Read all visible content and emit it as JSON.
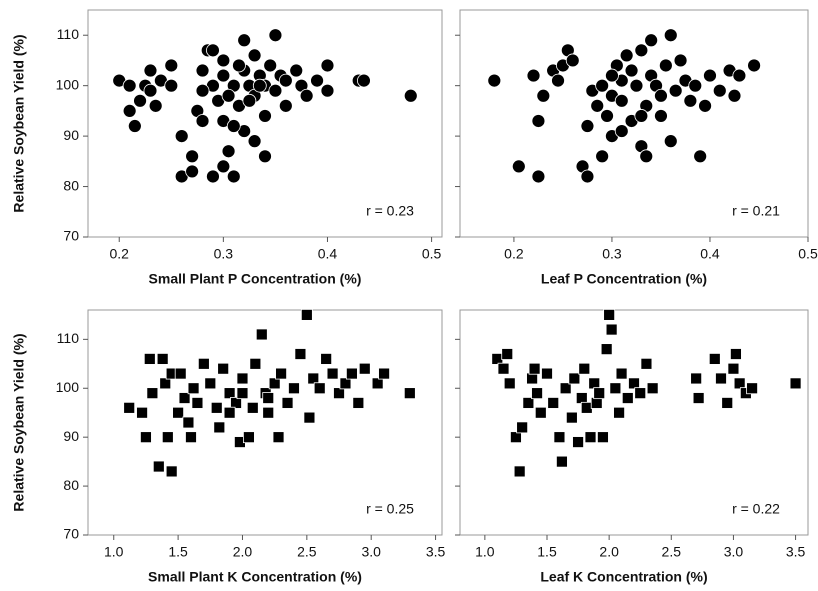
{
  "chart_data": [
    {
      "type": "scatter",
      "marker": "circle",
      "color": "#000000",
      "ylabel": "Relative Soybean Yield (%)",
      "xlabel": "Small Plant P Concentration (%)",
      "annotation": "r = 0.23",
      "xlim": [
        0.17,
        0.51
      ],
      "ylim": [
        70,
        115
      ],
      "xticks": [
        0.2,
        0.3,
        0.4,
        0.5
      ],
      "yticks": [
        70,
        80,
        90,
        100,
        110
      ],
      "x": [
        0.2,
        0.21,
        0.21,
        0.215,
        0.22,
        0.225,
        0.23,
        0.23,
        0.235,
        0.24,
        0.25,
        0.25,
        0.26,
        0.26,
        0.27,
        0.27,
        0.275,
        0.28,
        0.28,
        0.285,
        0.29,
        0.29,
        0.29,
        0.295,
        0.3,
        0.3,
        0.3,
        0.305,
        0.31,
        0.31,
        0.315,
        0.32,
        0.32,
        0.32,
        0.325,
        0.33,
        0.33,
        0.33,
        0.335,
        0.34,
        0.34,
        0.34,
        0.345,
        0.35,
        0.35,
        0.355,
        0.36,
        0.36,
        0.37,
        0.375,
        0.38,
        0.39,
        0.4,
        0.4,
        0.43,
        0.435,
        0.48,
        0.305,
        0.315,
        0.325,
        0.335,
        0.31,
        0.28,
        0.3
      ],
      "y": [
        101,
        100,
        95,
        92,
        97,
        100,
        103,
        99,
        96,
        101,
        100,
        104,
        90,
        82,
        86,
        83,
        95,
        103,
        93,
        107,
        107,
        82,
        100,
        97,
        93,
        102,
        84,
        87,
        100,
        82,
        96,
        109,
        103,
        91,
        100,
        106,
        98,
        89,
        102,
        100,
        86,
        94,
        104,
        110,
        99,
        102,
        96,
        101,
        103,
        100,
        98,
        101,
        104,
        99,
        101,
        101,
        98,
        98,
        104,
        97,
        100,
        92,
        99,
        105
      ]
    },
    {
      "type": "scatter",
      "marker": "circle",
      "color": "#000000",
      "xlabel": "Leaf P Concentration (%)",
      "annotation": "r = 0.21",
      "xlim": [
        0.145,
        0.5
      ],
      "ylim": [
        70,
        115
      ],
      "xticks": [
        0.2,
        0.3,
        0.4,
        0.5
      ],
      "yticks": [
        70,
        80,
        90,
        100,
        110
      ],
      "x": [
        0.18,
        0.205,
        0.22,
        0.225,
        0.225,
        0.23,
        0.24,
        0.245,
        0.25,
        0.255,
        0.26,
        0.27,
        0.275,
        0.275,
        0.28,
        0.285,
        0.29,
        0.29,
        0.295,
        0.3,
        0.3,
        0.305,
        0.31,
        0.31,
        0.315,
        0.32,
        0.32,
        0.325,
        0.33,
        0.33,
        0.335,
        0.335,
        0.34,
        0.34,
        0.345,
        0.35,
        0.355,
        0.36,
        0.36,
        0.365,
        0.37,
        0.375,
        0.38,
        0.385,
        0.39,
        0.395,
        0.4,
        0.41,
        0.42,
        0.425,
        0.43,
        0.445,
        0.31,
        0.3,
        0.35,
        0.33
      ],
      "y": [
        101,
        84,
        102,
        82,
        93,
        98,
        103,
        101,
        104,
        107,
        105,
        84,
        82,
        92,
        99,
        96,
        86,
        100,
        94,
        90,
        98,
        104,
        101,
        97,
        106,
        103,
        93,
        100,
        88,
        107,
        86,
        96,
        109,
        102,
        100,
        94,
        104,
        110,
        89,
        99,
        105,
        101,
        97,
        100,
        86,
        96,
        102,
        99,
        103,
        98,
        102,
        104,
        91,
        102,
        98,
        94
      ]
    },
    {
      "type": "scatter",
      "marker": "square",
      "color": "#000000",
      "ylabel": "Relative Soybean Yield (%)",
      "xlabel": "Small Plant K Concentration (%)",
      "annotation": "r = 0.25",
      "xlim": [
        0.8,
        3.55
      ],
      "ylim": [
        70,
        116
      ],
      "xticks": [
        {
          "value": 1,
          "label": "1.0"
        },
        1.5,
        {
          "value": 2,
          "label": "2.0"
        },
        2.5,
        {
          "value": 3,
          "label": "3.0"
        },
        3.5
      ],
      "yticks": [
        70,
        80,
        90,
        100,
        110
      ],
      "x": [
        1.12,
        1.22,
        1.25,
        1.28,
        1.3,
        1.35,
        1.38,
        1.4,
        1.42,
        1.45,
        1.45,
        1.5,
        1.52,
        1.55,
        1.58,
        1.6,
        1.62,
        1.65,
        1.7,
        1.75,
        1.8,
        1.82,
        1.85,
        1.9,
        1.95,
        1.98,
        2.0,
        2.05,
        2.08,
        2.1,
        2.15,
        2.18,
        2.2,
        2.25,
        2.28,
        2.3,
        2.35,
        2.4,
        2.45,
        2.5,
        2.52,
        2.55,
        2.6,
        2.65,
        2.7,
        2.75,
        2.8,
        2.85,
        2.9,
        2.95,
        3.05,
        3.1,
        3.3,
        2.0,
        2.2,
        1.9
      ],
      "y": [
        96,
        95,
        90,
        106,
        99,
        84,
        106,
        101,
        90,
        83,
        103,
        95,
        103,
        98,
        93,
        90,
        100,
        97,
        105,
        101,
        96,
        92,
        104,
        99,
        97,
        89,
        102,
        90,
        96,
        105,
        111,
        99,
        95,
        101,
        90,
        103,
        97,
        100,
        107,
        115,
        94,
        102,
        100,
        106,
        103,
        99,
        101,
        103,
        97,
        104,
        101,
        103,
        99,
        99,
        98,
        95
      ]
    },
    {
      "type": "scatter",
      "marker": "square",
      "color": "#000000",
      "xlabel": "Leaf K Concentration (%)",
      "annotation": "r = 0.22",
      "xlim": [
        0.8,
        3.6
      ],
      "ylim": [
        70,
        116
      ],
      "xticks": [
        {
          "value": 1,
          "label": "1.0"
        },
        1.5,
        {
          "value": 2,
          "label": "2.0"
        },
        2.5,
        {
          "value": 3,
          "label": "3.0"
        },
        3.5
      ],
      "yticks": [
        70,
        80,
        90,
        100,
        110
      ],
      "x": [
        1.1,
        1.15,
        1.18,
        1.2,
        1.25,
        1.28,
        1.3,
        1.35,
        1.38,
        1.4,
        1.42,
        1.45,
        1.5,
        1.55,
        1.6,
        1.62,
        1.65,
        1.7,
        1.72,
        1.75,
        1.78,
        1.8,
        1.82,
        1.85,
        1.88,
        1.9,
        1.92,
        1.95,
        1.98,
        2.0,
        2.02,
        2.05,
        2.08,
        2.1,
        2.15,
        2.2,
        2.25,
        2.3,
        2.35,
        2.7,
        2.72,
        2.85,
        2.9,
        2.95,
        3.0,
        3.02,
        3.05,
        3.1,
        3.15,
        3.5
      ],
      "y": [
        106,
        104,
        107,
        101,
        90,
        83,
        92,
        97,
        102,
        104,
        99,
        95,
        103,
        97,
        90,
        85,
        100,
        94,
        102,
        89,
        98,
        104,
        96,
        90,
        101,
        97,
        99,
        90,
        108,
        115,
        112,
        100,
        95,
        103,
        98,
        101,
        99,
        105,
        100,
        102,
        98,
        106,
        102,
        97,
        104,
        107,
        101,
        99,
        100,
        101
      ]
    }
  ]
}
